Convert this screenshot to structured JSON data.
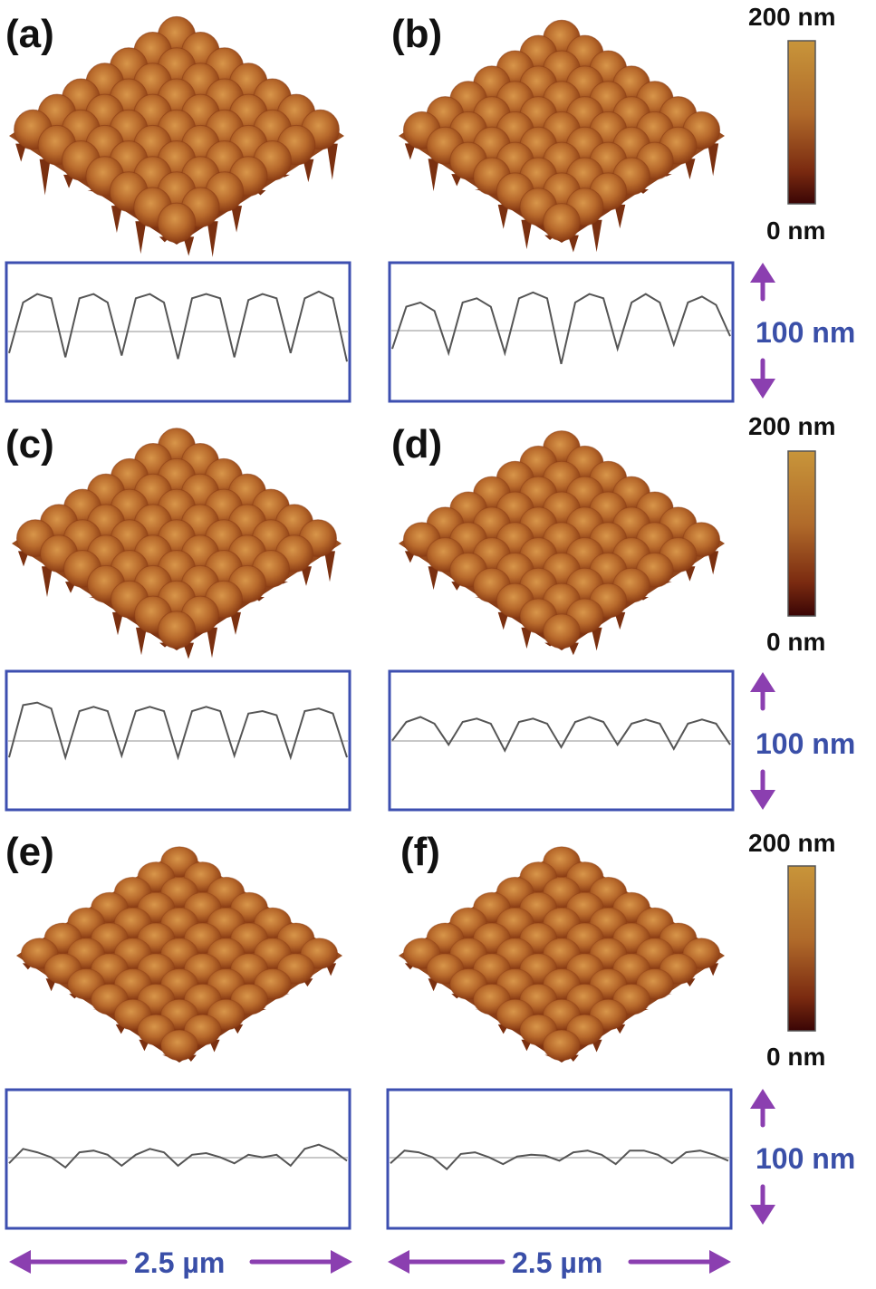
{
  "panels": [
    {
      "label": "(a)",
      "profile": [
        0.25,
        0.85,
        0.95,
        0.9,
        0.2,
        0.9,
        0.95,
        0.85,
        0.22,
        0.9,
        0.95,
        0.85,
        0.18,
        0.9,
        0.95,
        0.9,
        0.2,
        0.88,
        0.95,
        0.9,
        0.25,
        0.9,
        0.98,
        0.9,
        0.15
      ]
    },
    {
      "label": "(b)",
      "profile": [
        0.3,
        0.8,
        0.85,
        0.75,
        0.25,
        0.85,
        0.9,
        0.8,
        0.25,
        0.9,
        0.97,
        0.9,
        0.12,
        0.85,
        0.95,
        0.9,
        0.3,
        0.85,
        0.95,
        0.85,
        0.35,
        0.85,
        0.92,
        0.82,
        0.45
      ]
    },
    {
      "label": "(c)",
      "profile": [
        0.3,
        0.92,
        0.95,
        0.88,
        0.3,
        0.85,
        0.9,
        0.85,
        0.32,
        0.85,
        0.9,
        0.85,
        0.3,
        0.85,
        0.9,
        0.85,
        0.32,
        0.82,
        0.85,
        0.8,
        0.3,
        0.85,
        0.88,
        0.82,
        0.3
      ]
    },
    {
      "label": "(d)",
      "profile": [
        0.5,
        0.72,
        0.78,
        0.7,
        0.45,
        0.72,
        0.76,
        0.7,
        0.38,
        0.72,
        0.76,
        0.7,
        0.42,
        0.72,
        0.78,
        0.72,
        0.45,
        0.7,
        0.75,
        0.7,
        0.4,
        0.7,
        0.75,
        0.7,
        0.45
      ]
    },
    {
      "label": "(e)",
      "profile": [
        0.45,
        0.62,
        0.58,
        0.52,
        0.4,
        0.58,
        0.6,
        0.55,
        0.42,
        0.55,
        0.62,
        0.58,
        0.42,
        0.55,
        0.57,
        0.52,
        0.45,
        0.55,
        0.52,
        0.55,
        0.42,
        0.62,
        0.67,
        0.6,
        0.48
      ]
    },
    {
      "label": "(f)",
      "profile": [
        0.45,
        0.6,
        0.58,
        0.52,
        0.38,
        0.56,
        0.58,
        0.52,
        0.44,
        0.53,
        0.55,
        0.54,
        0.48,
        0.58,
        0.6,
        0.55,
        0.44,
        0.6,
        0.6,
        0.55,
        0.45,
        0.58,
        0.6,
        0.55,
        0.48
      ]
    }
  ],
  "colorbar": {
    "top_label": "200 nm",
    "bottom_label": "0 nm",
    "colors": [
      "#c8953a",
      "#b06a2a",
      "#7a2a10",
      "#3a0505"
    ]
  },
  "vertical_scale": {
    "label": "100 nm"
  },
  "horizontal_scale": {
    "label": "2.5 µm"
  },
  "accent_colors": {
    "profile_box": "#3d4fb0",
    "arrow": "#8b3fb0",
    "scale_text": "#3a4fa8",
    "surface_light": "#d08a3c",
    "surface_mid": "#b5652a",
    "surface_dark": "#6a2a0c"
  }
}
